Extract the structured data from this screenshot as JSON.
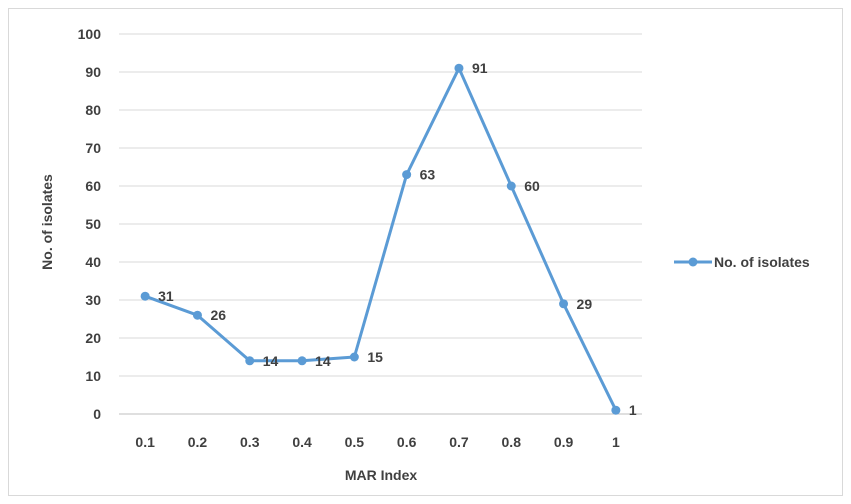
{
  "chart_data": {
    "type": "line",
    "title": "",
    "xlabel": "MAR Index",
    "ylabel": "No. of isolates",
    "x": [
      "0.1",
      "0.2",
      "0.3",
      "0.4",
      "0.5",
      "0.6",
      "0.7",
      "0.8",
      "0.9",
      "1"
    ],
    "ylim": [
      0,
      100
    ],
    "yticks": [
      "0",
      "10",
      "20",
      "30",
      "40",
      "50",
      "60",
      "70",
      "80",
      "90",
      "100"
    ],
    "grid": true,
    "legend": "right",
    "series": [
      {
        "name": "No. of isolates",
        "color": "#5b9bd5",
        "values": [
          31,
          26,
          14,
          14,
          15,
          63,
          91,
          60,
          29,
          1
        ],
        "labels": [
          "31",
          "26",
          "14",
          "14",
          "15",
          "63",
          "91",
          "60",
          "29",
          "1"
        ]
      }
    ]
  }
}
